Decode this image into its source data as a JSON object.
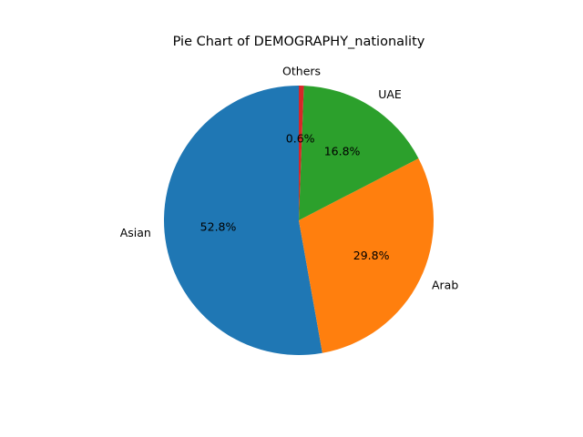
{
  "chart_data": {
    "type": "pie",
    "title": "Pie Chart of DEMOGRAPHY_nationality",
    "categories": [
      "Asian",
      "Arab",
      "UAE",
      "Others"
    ],
    "values": [
      52.8,
      29.8,
      16.8,
      0.6
    ],
    "pct_labels": [
      "52.8%",
      "29.8%",
      "16.8%",
      "0.6%"
    ],
    "colors": [
      "#1f77b4",
      "#ff7f0e",
      "#2ca02c",
      "#d62728"
    ],
    "start_angle_deg": 90,
    "direction": "counterclockwise",
    "legend": "none"
  }
}
